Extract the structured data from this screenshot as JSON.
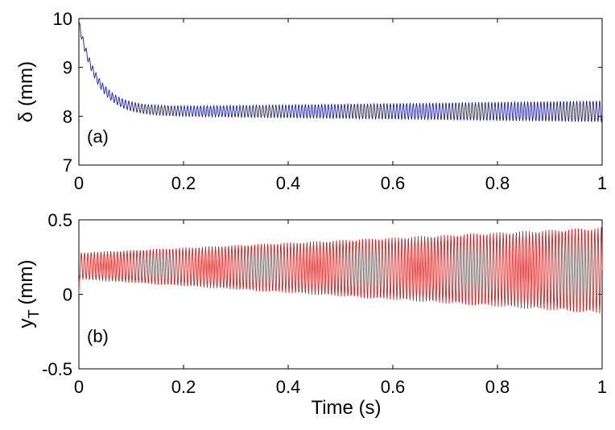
{
  "chart_data": [
    {
      "type": "line",
      "panel_label": "(a)",
      "ylabel": "δ (mm)",
      "xlim": [
        0,
        1
      ],
      "ylim": [
        7,
        10
      ],
      "xticks": [
        "0",
        "0.2",
        "0.4",
        "0.6",
        "0.8",
        "1"
      ],
      "yticks": [
        "7",
        "8",
        "9",
        "10"
      ],
      "grid": false,
      "series": [
        {
          "color": "#1f1f8f",
          "model": {
            "offset": 8.1,
            "decay_amp": 1.8,
            "decay_tau": 0.035,
            "osc_freq": 160,
            "osc_amp_start": 0.08,
            "osc_amp_end": 0.22
          }
        }
      ]
    },
    {
      "type": "line",
      "panel_label": "(b)",
      "ylabel": "y",
      "ylabel_sub": "T",
      "ylabel_unit": "(mm)",
      "xlabel": "Time (s)",
      "xlim": [
        0,
        1
      ],
      "ylim": [
        -0.5,
        0.5
      ],
      "xticks": [
        "0",
        "0.2",
        "0.4",
        "0.6",
        "0.8",
        "1"
      ],
      "yticks": [
        "-0.5",
        "0",
        "0.5"
      ],
      "grid": false,
      "series": [
        {
          "color": "#cc2222",
          "model": {
            "offset_start": 0.19,
            "offset_end": 0.16,
            "osc_freq": 160,
            "osc_amp_start": 0.09,
            "osc_amp_end": 0.29
          }
        }
      ]
    }
  ]
}
